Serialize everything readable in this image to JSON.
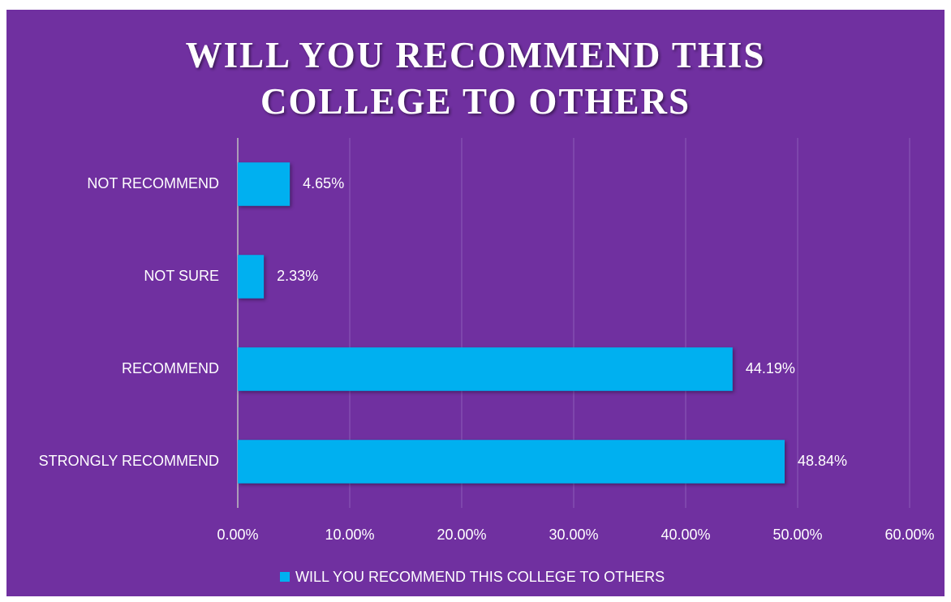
{
  "chart_data": {
    "type": "hbar",
    "title": "WILL YOU RECOMMEND THIS COLLEGE TO OTHERS",
    "categories": [
      "NOT RECOMMEND",
      "NOT SURE",
      "RECOMMEND",
      "STRONGLY RECOMMEND"
    ],
    "series": [
      {
        "name": "WILL YOU RECOMMEND THIS COLLEGE TO OTHERS",
        "color": "#00b0f0",
        "values": [
          4.65,
          2.33,
          44.19,
          48.84
        ],
        "value_labels": [
          "4.65%",
          "2.33%",
          "44.19%",
          "48.84%"
        ]
      }
    ],
    "xlim": [
      0,
      60
    ],
    "xticks": [
      {
        "value": 0,
        "label": "0.00%"
      },
      {
        "value": 10,
        "label": "10.00%"
      },
      {
        "value": 20,
        "label": "20.00%"
      },
      {
        "value": 30,
        "label": "30.00%"
      },
      {
        "value": 40,
        "label": "40.00%"
      },
      {
        "value": 50,
        "label": "50.00%"
      },
      {
        "value": 60,
        "label": "60.00%"
      }
    ],
    "grid": true,
    "legend": "bottom"
  }
}
